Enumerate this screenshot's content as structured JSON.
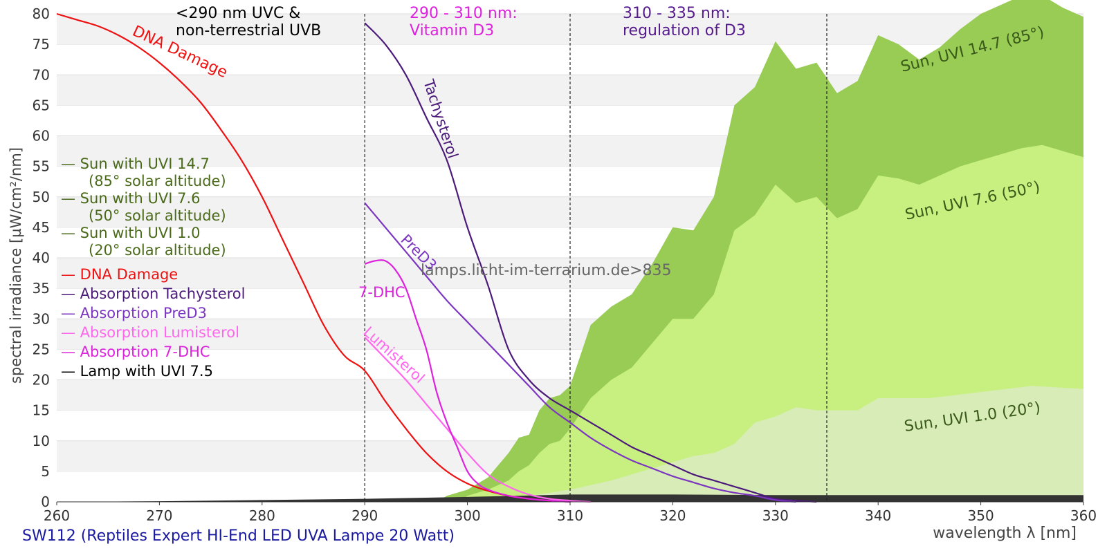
{
  "chart_data": {
    "type": "area",
    "caption": "SW112 (Reptiles Expert HI-End LED UVA Lampe 20 Watt)",
    "xlabel": "wavelength λ [nm]",
    "ylabel": "spectral irradiance [µW/cm²/nm]",
    "xlim": [
      260,
      360
    ],
    "ylim": [
      0,
      80
    ],
    "x_ticks": [
      260,
      270,
      280,
      290,
      300,
      310,
      320,
      330,
      340,
      350,
      360
    ],
    "y_ticks": [
      0,
      5,
      10,
      15,
      20,
      25,
      30,
      35,
      40,
      45,
      50,
      55,
      60,
      65,
      70,
      75,
      80
    ],
    "grid": "horizontal alternating bands",
    "watermark": "lamps.licht-im-terrarium.de>835",
    "regions": [
      {
        "x": 290,
        "label": [
          "<290 nm UVC &",
          "non-terrestrial UVB"
        ],
        "color": "#000000"
      },
      {
        "x": 310,
        "label": [
          "290 - 310 nm:",
          "Vitamin D3"
        ],
        "color": "#dd22dd"
      },
      {
        "x": 335,
        "label": [
          "310 - 335 nm:",
          "regulation of D3"
        ],
        "color": "#551a8b"
      }
    ],
    "areas": [
      {
        "name": "Sun with UVI 14.7",
        "legend_sub": "(85° solar altitude)",
        "label": "Sun, UVI 14.7 (85°)",
        "color": "#99cc55",
        "text_color": "#3a5a1a",
        "x": [
          297,
          298,
          300,
          302,
          303,
          304,
          305,
          306,
          307,
          308,
          309,
          310,
          312,
          314,
          316,
          318,
          320,
          322,
          324,
          326,
          328,
          330,
          332,
          334,
          336,
          338,
          340,
          342,
          344,
          346,
          348,
          350,
          352,
          354,
          356,
          358,
          360
        ],
        "y": [
          0,
          1,
          2,
          4,
          6,
          8,
          10.5,
          11,
          15,
          17,
          17.5,
          19,
          29,
          32,
          34,
          39,
          45,
          44.5,
          50,
          65,
          68,
          75.5,
          71,
          72,
          67,
          69,
          76.5,
          75,
          72.5,
          74.5,
          77.5,
          80,
          81.5,
          83,
          83,
          81,
          79.5
        ]
      },
      {
        "name": "Sun with UVI 7.6",
        "legend_sub": "(50° solar altitude)",
        "label": "Sun, UVI 7.6 (50°)",
        "color": "#c8f080",
        "text_color": "#3a5a1a",
        "x": [
          299,
          300,
          302,
          304,
          305,
          306,
          307,
          308,
          309,
          310,
          312,
          314,
          316,
          318,
          320,
          322,
          324,
          326,
          328,
          330,
          332,
          334,
          336,
          338,
          340,
          342,
          344,
          346,
          348,
          350,
          352,
          354,
          356,
          358,
          360
        ],
        "y": [
          0,
          1,
          2,
          3.5,
          5,
          6,
          8,
          9.5,
          10,
          12,
          17,
          20,
          22,
          26,
          30,
          30,
          34,
          44.5,
          47,
          52,
          49,
          50,
          46.5,
          48,
          53.5,
          53,
          52,
          53.5,
          55,
          56,
          57,
          58,
          58.5,
          57.5,
          56.5
        ]
      },
      {
        "name": "Sun with UVI 1.0",
        "legend_sub": "(20° solar altitude)",
        "label": "Sun, UVI 1.0 (20°)",
        "color": "#d8ecb8",
        "text_color": "#3a5a1a",
        "x": [
          303,
          306,
          310,
          314,
          318,
          322,
          324,
          326,
          328,
          330,
          332,
          334,
          336,
          338,
          340,
          345,
          350,
          355,
          360
        ],
        "y": [
          0,
          1,
          2,
          3.5,
          5.5,
          7.5,
          8,
          9.5,
          13,
          14,
          15.5,
          15,
          15,
          15,
          17,
          17,
          18,
          19,
          18.5
        ]
      }
    ],
    "series": [
      {
        "name": "DNA Damage",
        "label": "DNA Damage",
        "color": "#ee1111",
        "x": [
          260,
          262,
          264,
          266,
          268,
          270,
          272,
          274,
          276,
          278,
          280,
          282,
          284,
          286,
          288,
          290,
          292,
          294,
          296,
          298,
          300,
          302,
          304,
          306,
          308,
          310
        ],
        "y": [
          80,
          79,
          78,
          76.5,
          74.5,
          72,
          69,
          65.5,
          61,
          56,
          50,
          43,
          36,
          29,
          24,
          21.5,
          16.5,
          12,
          8,
          5,
          3,
          1.8,
          1,
          0.5,
          0.2,
          0
        ]
      },
      {
        "name": "Absorption Tachysterol",
        "label": "Tachysterol",
        "color": "#4b1a7a",
        "x": [
          290,
          292,
          294,
          296,
          298,
          300,
          302,
          304,
          306,
          308,
          310,
          312,
          314,
          316,
          318,
          320,
          322,
          324,
          326,
          328,
          330,
          332,
          334
        ],
        "y": [
          78.5,
          75,
          70,
          63,
          56,
          45,
          35.5,
          25,
          20,
          17,
          15,
          13,
          11,
          9,
          7.5,
          6,
          4.5,
          3.5,
          2.5,
          1.5,
          0.5,
          0.2,
          0
        ]
      },
      {
        "name": "Absorption PreD3",
        "label": "PreD3",
        "color": "#7b35c0",
        "x": [
          290,
          292,
          294,
          296,
          298,
          300,
          302,
          304,
          306,
          308,
          310,
          312,
          314,
          316,
          318,
          320,
          322,
          324,
          326,
          328,
          330,
          332
        ],
        "y": [
          49,
          45,
          41,
          37,
          33,
          29.5,
          26,
          22.5,
          19,
          15.5,
          13,
          10.5,
          8.5,
          6.8,
          5.5,
          4.2,
          3.2,
          2.2,
          1.5,
          1,
          0.3,
          0
        ]
      },
      {
        "name": "Absorption Lumisterol",
        "label": "Lumisterol",
        "color": "#ff66ee",
        "x": [
          290,
          292,
          294,
          296,
          298,
          300,
          302,
          304,
          306,
          308,
          310,
          312
        ],
        "y": [
          27,
          23.5,
          20,
          16,
          12,
          8,
          4.5,
          2.5,
          1.2,
          0.5,
          0.2,
          0
        ]
      },
      {
        "name": "Absorption 7-DHC",
        "label": "7-DHC",
        "color": "#dd22dd",
        "x": [
          290,
          291,
          292,
          293,
          294,
          295,
          296,
          297,
          298,
          299,
          300,
          301,
          302,
          304,
          306,
          308,
          310
        ],
        "y": [
          39,
          39.5,
          39.5,
          38,
          35,
          30,
          25,
          18,
          13,
          9,
          5,
          3,
          2,
          1,
          0.5,
          0.2,
          0
        ]
      },
      {
        "name": "Lamp with UVI 7.5",
        "color": "#333333",
        "x": [
          260,
          270,
          280,
          290,
          300,
          310,
          320,
          330,
          340,
          350,
          360
        ],
        "y": [
          0,
          0.1,
          0.3,
          0.5,
          0.8,
          1.2,
          1.2,
          1.1,
          1.1,
          1.1,
          1.1
        ]
      }
    ]
  },
  "legend": [
    {
      "text": "— Sun with UVI 14.7",
      "color": "#4a6a1a"
    },
    {
      "text": "(85° solar altitude)",
      "color": "#4a6a1a"
    },
    {
      "text": "— Sun with UVI 7.6",
      "color": "#4a6a1a"
    },
    {
      "text": "(50° solar altitude)",
      "color": "#4a6a1a"
    },
    {
      "text": "— Sun with UVI 1.0",
      "color": "#4a6a1a"
    },
    {
      "text": "(20° solar altitude)",
      "color": "#4a6a1a"
    },
    {
      "text": "— DNA Damage",
      "color": "#ee1111"
    },
    {
      "text": "— Absorption Tachysterol",
      "color": "#4b1a7a"
    },
    {
      "text": "— Absorption PreD3",
      "color": "#7b35c0"
    },
    {
      "text": "— Absorption Lumisterol",
      "color": "#ff66ee"
    },
    {
      "text": "— Absorption 7-DHC",
      "color": "#dd22dd"
    },
    {
      "text": "— Lamp with UVI 7.5",
      "color": "#000000"
    }
  ]
}
